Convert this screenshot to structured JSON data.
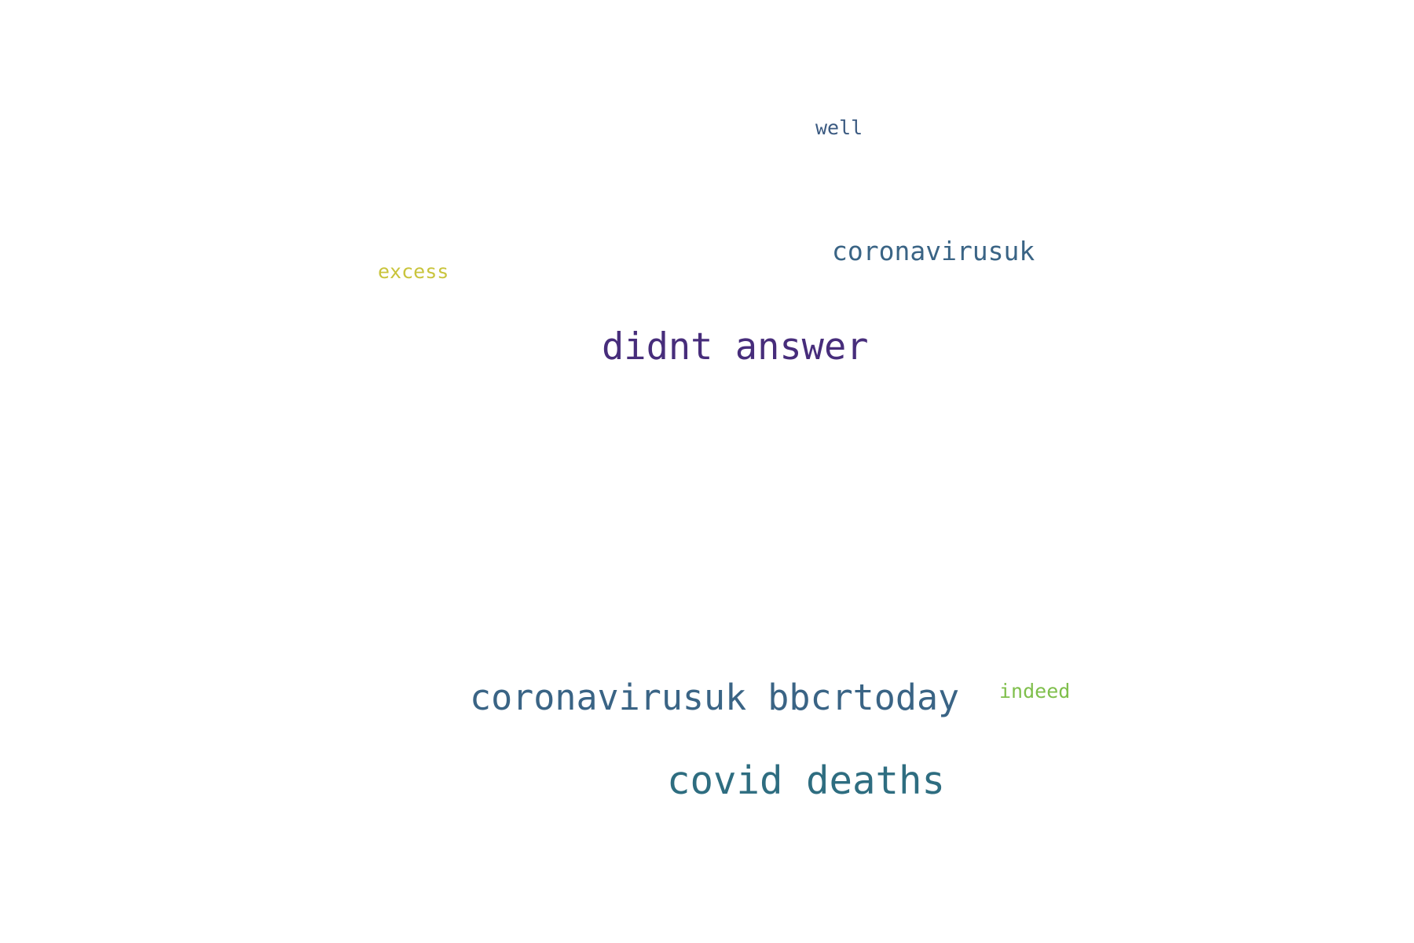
{
  "words": [
    {
      "id": "well",
      "text": "well",
      "color": "#3b5a81"
    },
    {
      "id": "coronavirusuk",
      "text": "coronavirusuk",
      "color": "#3a6485"
    },
    {
      "id": "excess",
      "text": "excess",
      "color": "#c9c43c"
    },
    {
      "id": "didnt_answer",
      "text": "didnt answer",
      "color": "#472d7b"
    },
    {
      "id": "coronavirusuk_bbcrtoday",
      "text": "coronavirusuk bbcrtoday",
      "color": "#3a6485"
    },
    {
      "id": "indeed",
      "text": "indeed",
      "color": "#7fbf4c"
    },
    {
      "id": "covid_deaths",
      "text": "covid deaths",
      "color": "#2e6d80"
    }
  ]
}
